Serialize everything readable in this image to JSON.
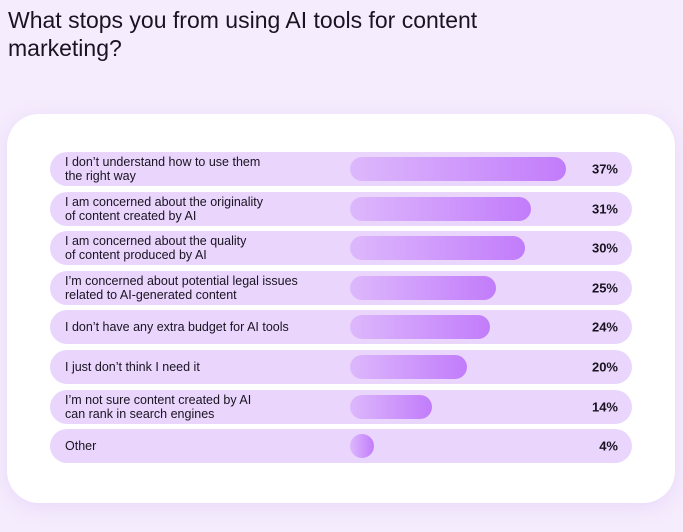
{
  "chart_data": {
    "type": "bar",
    "orientation": "horizontal",
    "title": "What stops you from using AI tools for content marketing?",
    "categories": [
      "I don’t understand how to use them\nthe right way",
      "I am concerned about the originality\nof content created by AI",
      "I am concerned about the quality\nof content produced by AI",
      "I’m concerned about potential legal issues\nrelated to AI-generated content",
      "I don’t have any extra budget for AI tools",
      "I just don’t think I need it",
      "I’m not sure content created by AI\ncan rank in search engines",
      "Other"
    ],
    "values": [
      37,
      31,
      30,
      25,
      24,
      20,
      14,
      4
    ],
    "value_labels": [
      "37%",
      "31%",
      "30%",
      "25%",
      "24%",
      "20%",
      "14%",
      "4%"
    ],
    "unit": "%",
    "colors": {
      "row_bg": "#ead6fd",
      "bar_start": "#ddb8fc",
      "bar_end": "#c27cfb",
      "page_bg": "#f5ecfd"
    }
  }
}
